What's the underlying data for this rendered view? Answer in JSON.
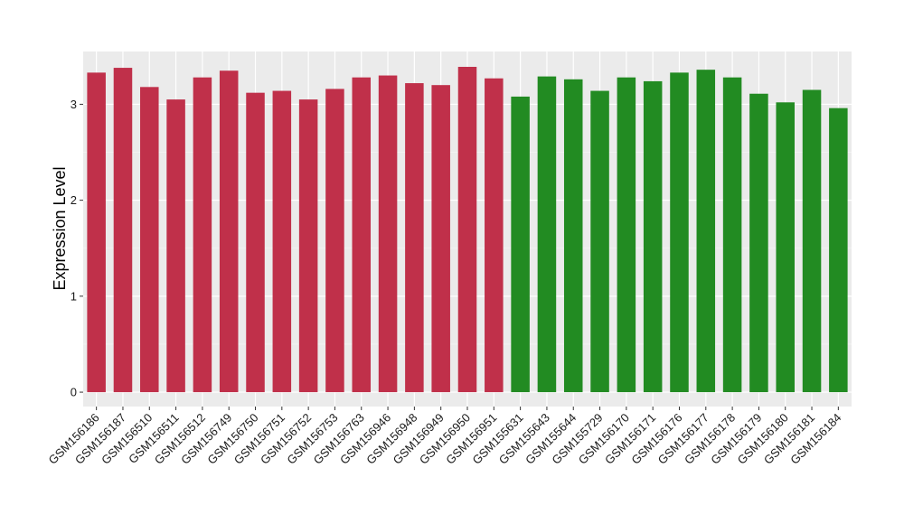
{
  "chart_data": {
    "type": "bar",
    "ylabel": "Expression Level",
    "xlabel": "",
    "ylim": [
      -0.15,
      3.55
    ],
    "yticks": [
      0,
      1,
      2,
      3
    ],
    "grid": true,
    "background": "#ebebeb",
    "categories": [
      "GSM156186",
      "GSM156187",
      "GSM156510",
      "GSM156511",
      "GSM156512",
      "GSM156749",
      "GSM156750",
      "GSM156751",
      "GSM156752",
      "GSM156753",
      "GSM156763",
      "GSM156946",
      "GSM156948",
      "GSM156949",
      "GSM156950",
      "GSM156951",
      "GSM155631",
      "GSM155643",
      "GSM155644",
      "GSM155729",
      "GSM156170",
      "GSM156171",
      "GSM156176",
      "GSM156177",
      "GSM156178",
      "GSM156179",
      "GSM156180",
      "GSM156181",
      "GSM156184"
    ],
    "values": [
      3.33,
      3.38,
      3.18,
      3.05,
      3.28,
      3.35,
      3.12,
      3.14,
      3.05,
      3.16,
      3.28,
      3.3,
      3.22,
      3.2,
      3.39,
      3.27,
      3.08,
      3.29,
      3.26,
      3.14,
      3.28,
      3.24,
      3.33,
      3.36,
      3.28,
      3.11,
      3.02,
      3.15,
      2.96
    ],
    "groups": [
      "red",
      "red",
      "red",
      "red",
      "red",
      "red",
      "red",
      "red",
      "red",
      "red",
      "red",
      "red",
      "red",
      "red",
      "red",
      "red",
      "green",
      "green",
      "green",
      "green",
      "green",
      "green",
      "green",
      "green",
      "green",
      "green",
      "green",
      "green",
      "green"
    ],
    "colors": {
      "red": "#c0304a",
      "green": "#228b22"
    }
  }
}
